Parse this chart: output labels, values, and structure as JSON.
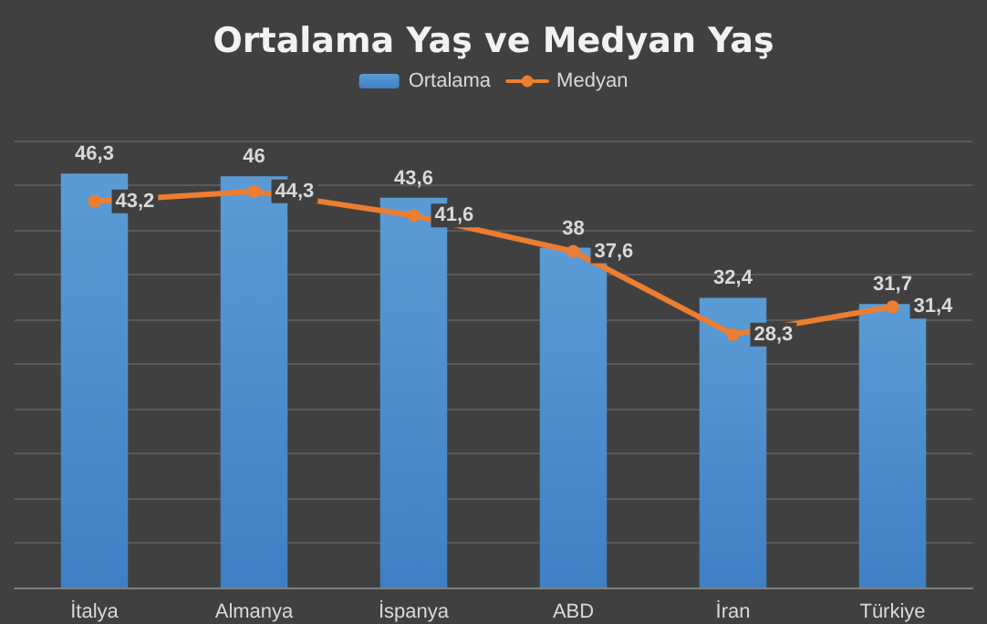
{
  "chart_data": {
    "type": "bar",
    "title": "Ortalama Yaş ve Medyan Yaş",
    "categories": [
      "İtalya",
      "Almanya",
      "İspanya",
      "ABD",
      "İran",
      "Türkiye"
    ],
    "series": [
      {
        "name": "Ortalama",
        "color": "#5b9bd5",
        "values": [
          46.3,
          46,
          43.6,
          38,
          32.4,
          31.7
        ],
        "value_labels": [
          "46,3",
          "46",
          "43,6",
          "38",
          "32,4",
          "31,7"
        ]
      },
      {
        "name": "Medyan",
        "type": "line",
        "color": "#ed7d31",
        "values": [
          43.2,
          44.3,
          41.6,
          37.6,
          28.3,
          31.4
        ],
        "value_labels": [
          "43,2",
          "44,3",
          "41,6",
          "37,6",
          "28,3",
          "31,4"
        ]
      }
    ],
    "ylim": [
      0,
      50
    ],
    "yticks": [
      {
        "value": 0,
        "label": null
      },
      {
        "value": 5,
        "label": null
      },
      {
        "value": 10,
        "label": null
      },
      {
        "value": 15,
        "label": null
      },
      {
        "value": 20,
        "label": null
      },
      {
        "value": 25,
        "label": null
      },
      {
        "value": 30,
        "label": null
      },
      {
        "value": 35,
        "label": null
      },
      {
        "value": 40,
        "label": null
      },
      {
        "value": 45,
        "label": null
      },
      {
        "value": 50,
        "label": null
      }
    ],
    "tick_labels": "x",
    "grid": "y",
    "legend": "top",
    "marker": "circle",
    "line_style": "solid"
  }
}
